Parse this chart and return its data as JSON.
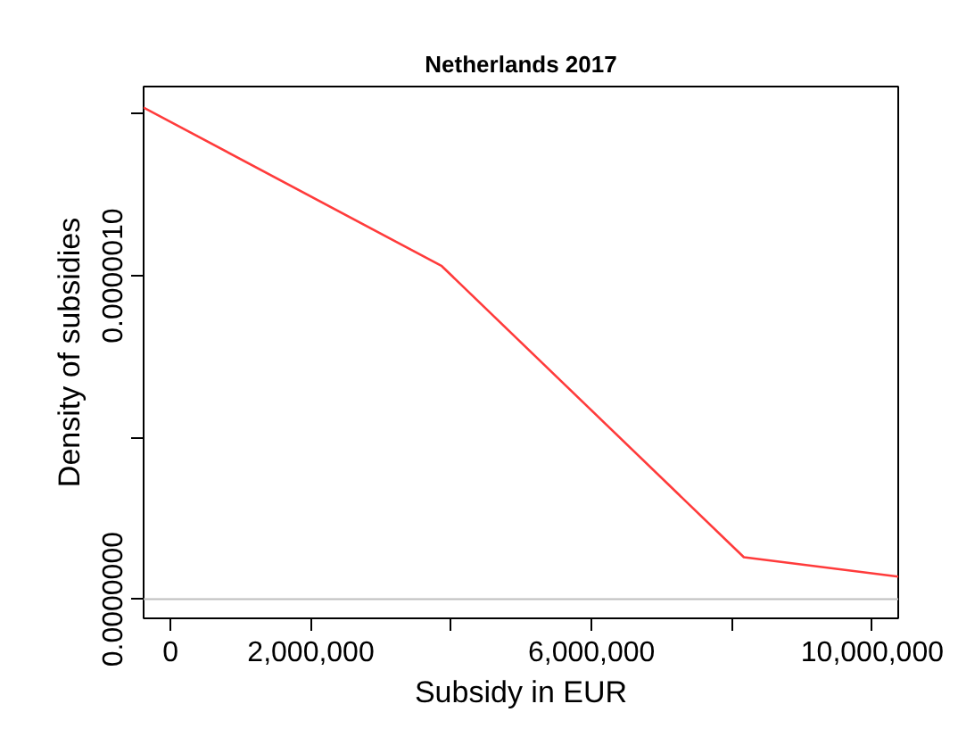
{
  "chart_data": {
    "type": "line",
    "title": "Netherlands 2017",
    "xlabel": "Subsidy in EUR",
    "ylabel": "Density of subsidies",
    "x": [
      -384000,
      3865000,
      8170000,
      10370000
    ],
    "series": [
      {
        "color": "#ff3b3b",
        "values": [
          1.52e-06,
          1.03e-06,
          1.3e-07,
          7e-08
        ]
      }
    ],
    "xlim": [
      -384000,
      10370000
    ],
    "ylim": [
      -5.9e-08,
      1.585e-06
    ],
    "xticks": [
      0,
      {
        "value": 2000000,
        "label": "2,000,000"
      },
      {
        "value": 4000000,
        "label": null
      },
      {
        "value": 6000000,
        "label": "6,000,000"
      },
      {
        "value": 8000000,
        "label": null
      },
      {
        "value": 10000000,
        "label": "10,000,000"
      }
    ],
    "yticks": [
      {
        "value": 0,
        "label": "0.0000000"
      },
      {
        "value": 5e-07,
        "label": null
      },
      {
        "value": 1e-06,
        "label": "0.0000010"
      },
      {
        "value": 1.5e-06,
        "label": null
      }
    ],
    "ref_lines": [
      {
        "axis": "y",
        "value": 0,
        "color": "#bebebe"
      }
    ],
    "grid": false,
    "marker": "none",
    "line_style": "solid"
  }
}
